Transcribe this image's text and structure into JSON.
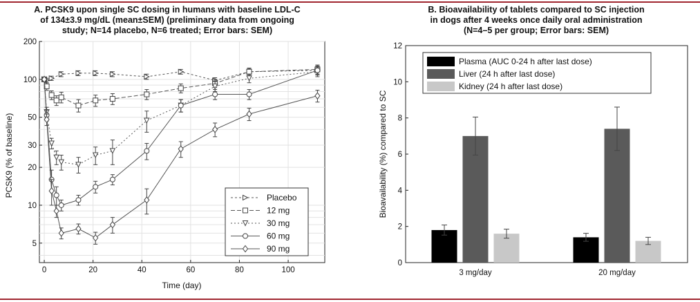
{
  "chart_data": [
    {
      "type": "line",
      "title_lines": [
        "A. PCSK9 upon single SC dosing in humans with baseline LDL-C",
        "of 134±3.9 mg/dL (mean±SEM) (preliminary data from ongoing",
        "study; N=14 placebo, N=6 treated; Error bars: SEM)"
      ],
      "xlabel": "Time (day)",
      "ylabel": "PCSK9 (% of baseline)",
      "xlim": [
        -2,
        115
      ],
      "ylim": [
        3.5,
        200
      ],
      "yscale": "log",
      "xticks": [
        "0",
        "20",
        "40",
        "60",
        "80",
        "100"
      ],
      "xtick_values": [
        0,
        20,
        40,
        60,
        80,
        100
      ],
      "yticks": [
        "5",
        "10",
        "20",
        "30",
        "50",
        "100",
        "200"
      ],
      "ytick_values": [
        5,
        10,
        20,
        30,
        50,
        100,
        200
      ],
      "grid": true,
      "legend_position": "bottom-right",
      "series": [
        {
          "name": "Placebo",
          "marker": "triangle-right",
          "dash": "3,3",
          "x": [
            0,
            1,
            3,
            7,
            14,
            21,
            28,
            42,
            56,
            70,
            84,
            112
          ],
          "y": [
            100,
            98,
            102,
            110,
            112,
            112,
            110,
            105,
            115,
            98,
            115,
            118
          ],
          "err": [
            4,
            4,
            4,
            5,
            5,
            5,
            5,
            5,
            5,
            5,
            6,
            8
          ]
        },
        {
          "name": "12 mg",
          "marker": "square",
          "dash": "6,3",
          "x": [
            0,
            1,
            3,
            5,
            7,
            14,
            21,
            28,
            42,
            56,
            70,
            84,
            112
          ],
          "y": [
            100,
            88,
            75,
            68,
            72,
            62,
            68,
            70,
            76,
            85,
            93,
            115,
            120
          ],
          "err": [
            4,
            6,
            6,
            6,
            7,
            7,
            7,
            7,
            7,
            7,
            7,
            8,
            10
          ]
        },
        {
          "name": "30 mg",
          "marker": "triangle-down",
          "dash": "2,3",
          "x": [
            0,
            1,
            3,
            5,
            7,
            14,
            21,
            28,
            42,
            56,
            70,
            84,
            112
          ],
          "y": [
            100,
            55,
            31,
            24,
            22,
            21,
            25,
            27,
            47,
            62,
            88,
            102,
            115
          ],
          "err": [
            3,
            5,
            3,
            3,
            3,
            3,
            4,
            6,
            9,
            7,
            8,
            8,
            10
          ]
        },
        {
          "name": "60 mg",
          "marker": "circle",
          "dash": "",
          "x": [
            0,
            1,
            3,
            5,
            7,
            14,
            21,
            28,
            42,
            56,
            70,
            84,
            112
          ],
          "y": [
            100,
            52,
            16,
            12,
            10,
            11,
            14,
            16,
            27,
            62,
            76,
            76,
            118
          ],
          "err": [
            3,
            5,
            3,
            2,
            1,
            1,
            1.5,
            1.5,
            4,
            7,
            7,
            7,
            10
          ]
        },
        {
          "name": "90 mg",
          "marker": "diamond",
          "dash": "",
          "x": [
            0,
            1,
            3,
            5,
            7,
            14,
            21,
            28,
            42,
            56,
            70,
            84,
            112
          ],
          "y": [
            100,
            48,
            13,
            9,
            6,
            6.5,
            5.5,
            7,
            11,
            28,
            40,
            53,
            74
          ],
          "err": [
            3,
            5,
            3,
            1,
            0.6,
            0.6,
            0.6,
            1,
            2.5,
            4,
            5,
            6,
            8
          ]
        }
      ]
    },
    {
      "type": "bar",
      "title_lines": [
        "B. Bioavailability of tablets compared to SC injection",
        "in dogs after 4 weeks once daily oral administration",
        "(N=4–5 per group; Error bars: SEM)"
      ],
      "xlabel": "",
      "ylabel": "Bioavailability (%) compared to SC",
      "ylim": [
        0,
        12
      ],
      "yticks": [
        "0",
        "2",
        "4",
        "6",
        "8",
        "10",
        "12"
      ],
      "ytick_values": [
        0,
        2,
        4,
        6,
        8,
        10,
        12
      ],
      "grid": false,
      "legend_position": "top-left",
      "categories": [
        "3 mg/day",
        "20 mg/day"
      ],
      "series": [
        {
          "name": "Plasma (AUC 0-24 h after last dose)",
          "color": "#000000",
          "values": [
            1.8,
            1.4
          ],
          "err": [
            0.28,
            0.22
          ]
        },
        {
          "name": "Liver (24 h after last dose)",
          "color": "#5a5a5a",
          "values": [
            7.0,
            7.4
          ],
          "err": [
            1.05,
            1.2
          ]
        },
        {
          "name": "Kidney (24 h after last dose)",
          "color": "#c8c8c8",
          "values": [
            1.6,
            1.2
          ],
          "err": [
            0.25,
            0.2
          ]
        }
      ]
    }
  ]
}
